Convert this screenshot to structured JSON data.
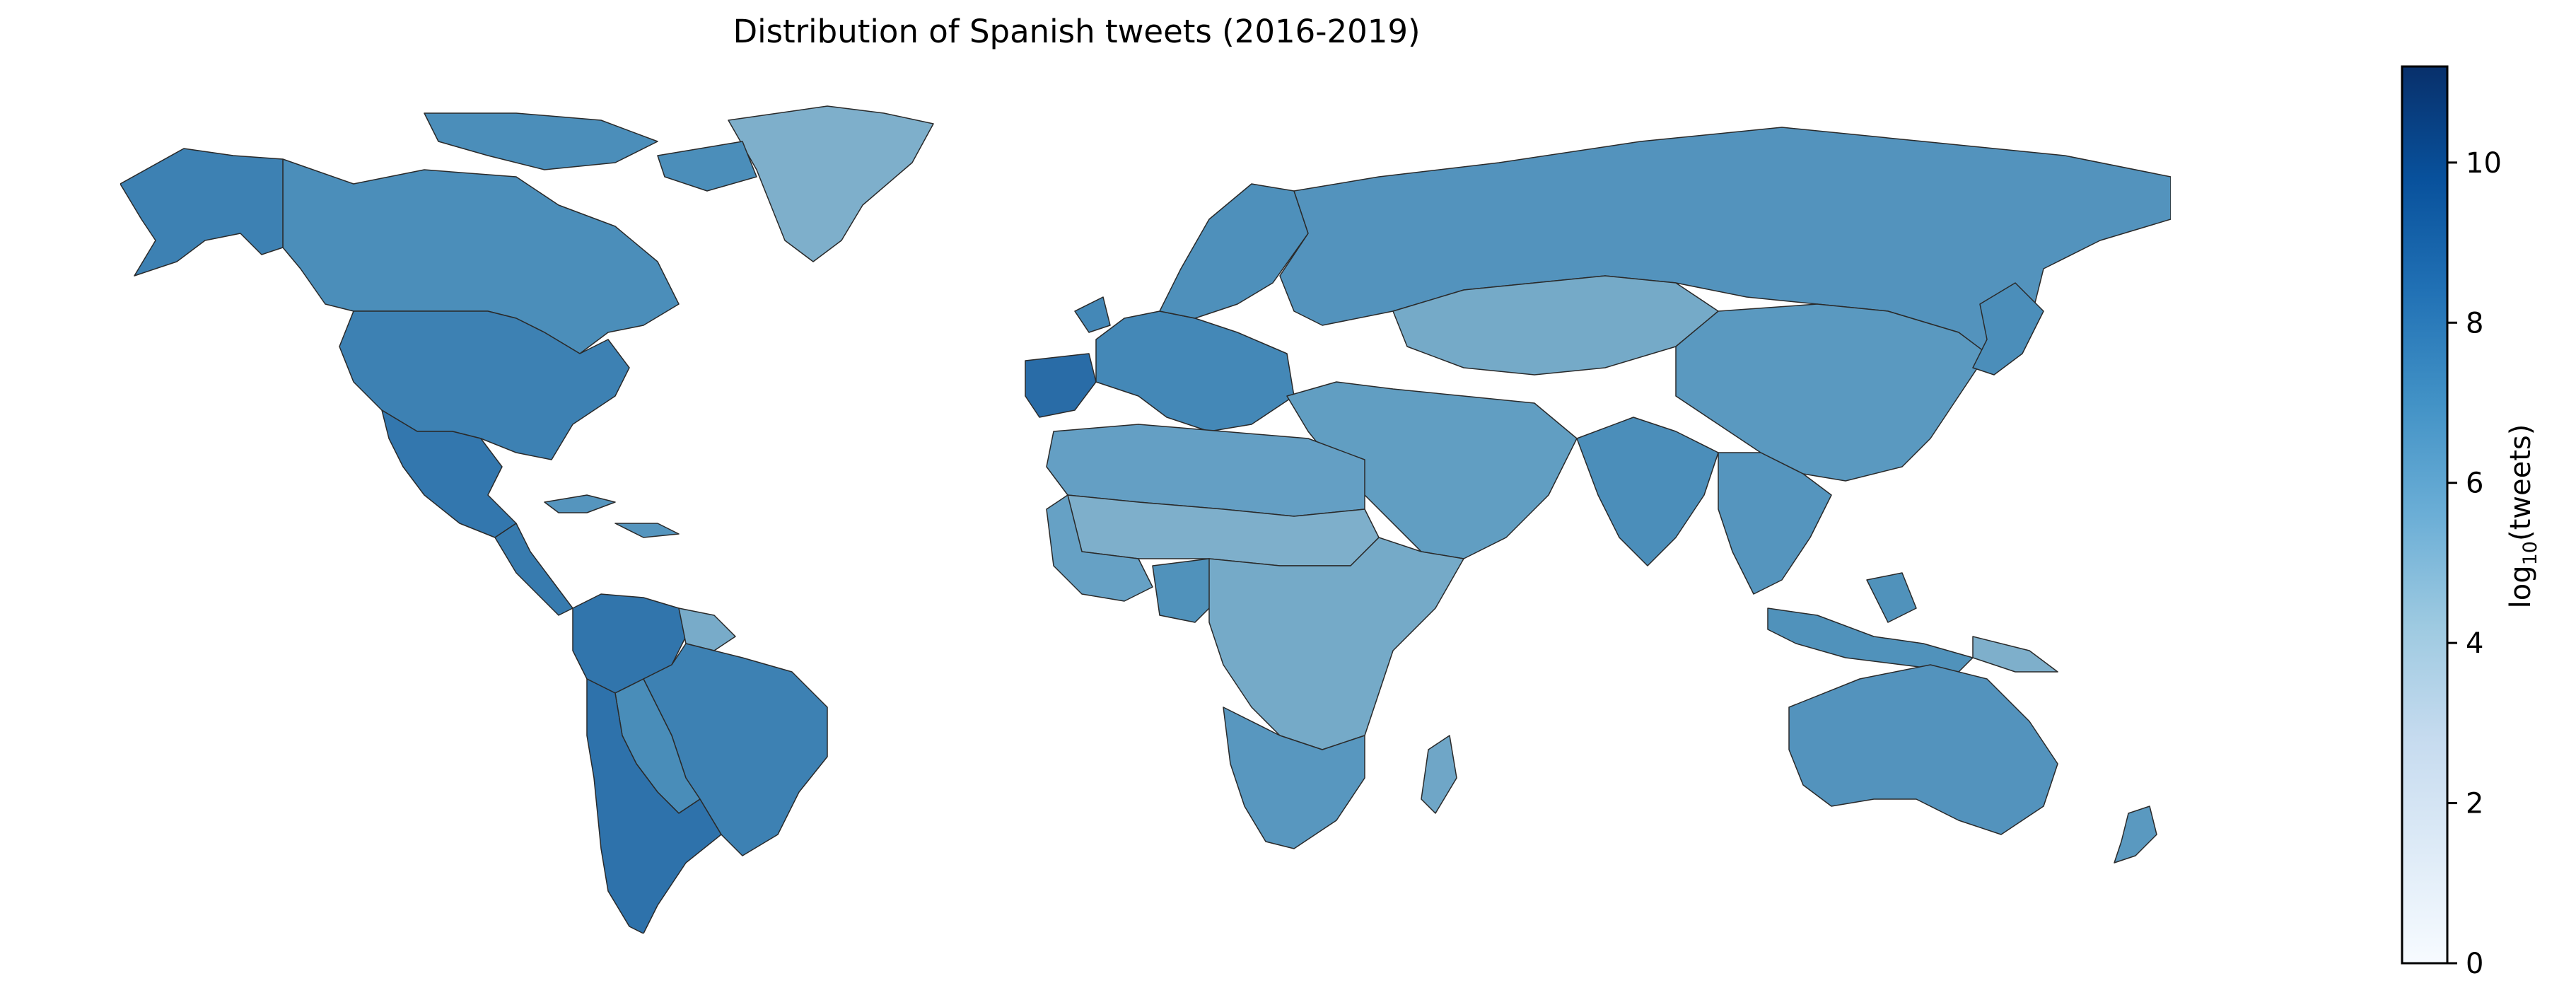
{
  "title": "Distribution of Spanish tweets (2016-2019)",
  "colorbar": {
    "label_main": "log",
    "label_sub": "10",
    "label_rest": "(tweets)",
    "min": 0,
    "max": 11.2,
    "ticks": [
      0,
      2,
      4,
      6,
      8,
      10
    ],
    "colormap": "Blues",
    "stops": [
      {
        "v": 0,
        "color": "#f7fbff"
      },
      {
        "v": 0.125,
        "color": "#deebf7"
      },
      {
        "v": 0.25,
        "color": "#c6dbef"
      },
      {
        "v": 0.375,
        "color": "#9ecae1"
      },
      {
        "v": 0.5,
        "color": "#6baed6"
      },
      {
        "v": 0.625,
        "color": "#4292c6"
      },
      {
        "v": 0.75,
        "color": "#2171b5"
      },
      {
        "v": 0.875,
        "color": "#08519c"
      },
      {
        "v": 1,
        "color": "#08306b"
      }
    ]
  },
  "regions": [
    {
      "name": "Canada",
      "value": 6.9
    },
    {
      "name": "Alaska",
      "value": 7.6
    },
    {
      "name": "Greenland",
      "value": 5.0
    },
    {
      "name": "Arctic islands",
      "value": 6.9
    },
    {
      "name": "United States",
      "value": 7.6
    },
    {
      "name": "Mexico",
      "value": 8.1
    },
    {
      "name": "Central America",
      "value": 7.9
    },
    {
      "name": "Caribbean",
      "value": 6.5
    },
    {
      "name": "Venezuela & Colombia",
      "value": 8.2
    },
    {
      "name": "Guianas",
      "value": 5.2
    },
    {
      "name": "Brazil",
      "value": 7.6
    },
    {
      "name": "Bolivia & Paraguay",
      "value": 7.0
    },
    {
      "name": "Argentina & Chile",
      "value": 8.3
    },
    {
      "name": "Spain",
      "value": 8.6
    },
    {
      "name": "Europe",
      "value": 7.2
    },
    {
      "name": "Scandinavia",
      "value": 6.8
    },
    {
      "name": "Russia",
      "value": 6.6
    },
    {
      "name": "Central Asia",
      "value": 5.3
    },
    {
      "name": "China",
      "value": 6.3
    },
    {
      "name": "India",
      "value": 6.9
    },
    {
      "name": "Southeast Asia",
      "value": 6.5
    },
    {
      "name": "Middle East",
      "value": 6.0
    },
    {
      "name": "North Africa",
      "value": 5.9
    },
    {
      "name": "Sahel",
      "value": 5.0
    },
    {
      "name": "West Africa",
      "value": 5.8
    },
    {
      "name": "Nigeria",
      "value": 6.7
    },
    {
      "name": "Central & East Africa",
      "value": 5.3
    },
    {
      "name": "Southern Africa",
      "value": 6.4
    },
    {
      "name": "Madagascar",
      "value": 5.5
    },
    {
      "name": "Indonesia",
      "value": 6.7
    },
    {
      "name": "Papua New Guinea",
      "value": 5.0
    },
    {
      "name": "Japan",
      "value": 6.9
    },
    {
      "name": "Australia",
      "value": 6.6
    },
    {
      "name": "New Zealand",
      "value": 6.3
    }
  ]
}
